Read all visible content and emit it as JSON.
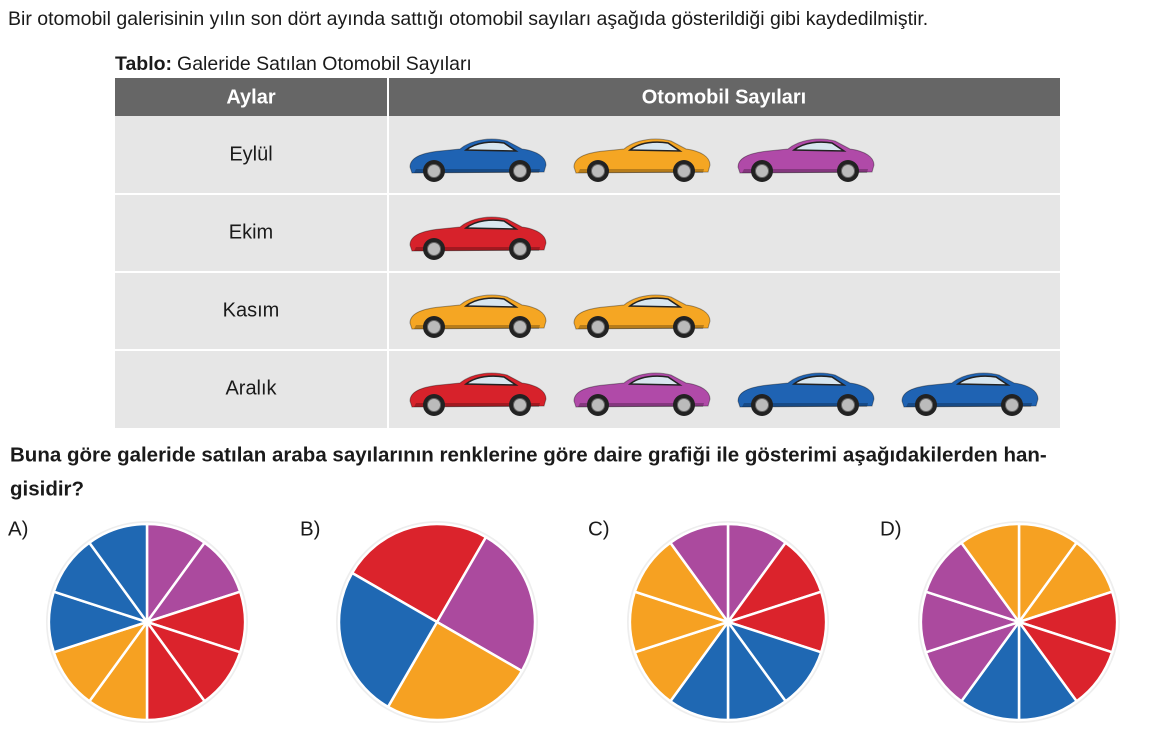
{
  "intro": "Bir otomobil galerisinin yılın son dört ayında sattığı otomobil sayıları aşağıda gösterildiği gibi kaydedilmiştir.",
  "caption": {
    "label": "Tablo:",
    "text": "Galeride Satılan Otomobil Sayıları"
  },
  "table": {
    "headers": [
      "Aylar",
      "Otomobil Sayıları"
    ],
    "rows": [
      {
        "month": "Eylül",
        "cars": [
          "#1f63b3",
          "#f5a623",
          "#b04aa8"
        ]
      },
      {
        "month": "Ekim",
        "cars": [
          "#d7222b"
        ]
      },
      {
        "month": "Kasım",
        "cars": [
          "#f5a623",
          "#f5a623"
        ]
      },
      {
        "month": "Aralık",
        "cars": [
          "#d7222b",
          "#b04aa8",
          "#1f63b3",
          "#1f63b3"
        ]
      }
    ]
  },
  "question": [
    "Buna göre galeride satılan araba sayılarının renklerine göre daire grafiği ile gösterimi aşağıdakilerden han-",
    "gisidir?"
  ],
  "options": [
    {
      "label": "A)",
      "slices": [
        "#ab4a9e",
        "#ab4a9e",
        "#db232c",
        "#db232c",
        "#db232c",
        "#f6a122",
        "#f6a122",
        "#1f68b3",
        "#1f68b3",
        "#1f68b3"
      ]
    },
    {
      "label": "B)",
      "slices": [
        "#db232c",
        "#ab4a9e",
        "#f6a122",
        "#1f68b3"
      ]
    },
    {
      "label": "C)",
      "slices": [
        "#ab4a9e",
        "#db232c",
        "#db232c",
        "#1f68b3",
        "#1f68b3",
        "#1f68b3",
        "#f6a122",
        "#f6a122",
        "#f6a122",
        "#ab4a9e"
      ]
    },
    {
      "label": "D)",
      "slices": [
        "#f6a122",
        "#f6a122",
        "#db232c",
        "#db232c",
        "#1f68b3",
        "#1f68b3",
        "#ab4a9e",
        "#ab4a9e",
        "#ab4a9e",
        "#f6a122"
      ]
    }
  ]
}
